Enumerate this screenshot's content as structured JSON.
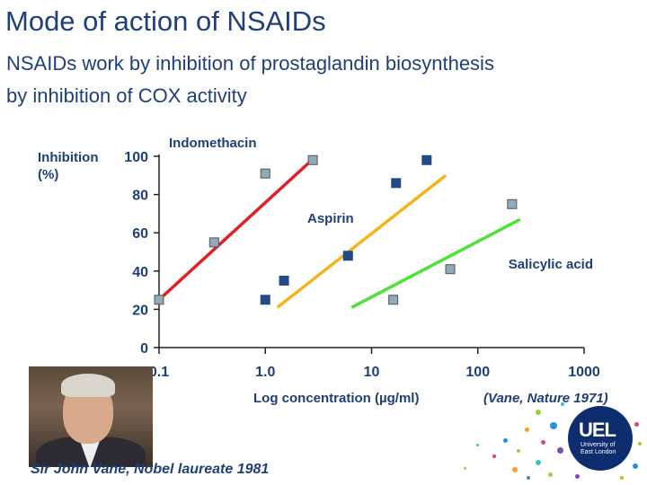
{
  "title": "Mode of action of NSAIDs",
  "subtitle_lines": [
    "NSAIDs work by inhibition of prostaglandin biosynthesis",
    "by inhibition of COX activity"
  ],
  "caption": "Sir John Vane, Nobel laureate 1981",
  "logo": {
    "mark": "UEL",
    "name": "University of East London"
  },
  "colors": {
    "text": "#1f3f7a",
    "indomethacin": "#e01f26",
    "aspirin": "#f4b41a",
    "salicylic": "#4fe03a",
    "marker_navy": "#214a86",
    "marker_grey": "#8faab8",
    "marker_outline": "#555555"
  },
  "chart_data": {
    "type": "scatter",
    "ylabel": "Inhibition\n(%)",
    "xlabel": "Log concentration (µg/ml)",
    "citation": "(Vane, Nature 1971)",
    "xscale": "log",
    "x_ticks": [
      {
        "value": 0.1,
        "label": "0.1"
      },
      {
        "value": 1,
        "label": "1.0"
      },
      {
        "value": 10,
        "label": "10"
      },
      {
        "value": 100,
        "label": "100"
      },
      {
        "value": 1000,
        "label": "1000"
      }
    ],
    "y_ticks": [
      0,
      20,
      40,
      60,
      80,
      100
    ],
    "xlim": [
      0.1,
      1000
    ],
    "ylim": [
      0,
      100
    ],
    "grid": false,
    "series": [
      {
        "name": "Indomethacin",
        "color_key": "indomethacin",
        "line": [
          [
            0.1,
            25
          ],
          [
            3,
            100
          ]
        ],
        "points": [
          {
            "x": 0.1,
            "y": 25,
            "marker": "grey"
          },
          {
            "x": 0.33,
            "y": 55,
            "marker": "grey"
          },
          {
            "x": 1.0,
            "y": 91,
            "marker": "grey"
          },
          {
            "x": 2.8,
            "y": 98,
            "marker": "grey"
          }
        ]
      },
      {
        "name": "Aspirin",
        "color_key": "aspirin",
        "line": [
          [
            1.3,
            21
          ],
          [
            50,
            90
          ]
        ],
        "points": [
          {
            "x": 1.0,
            "y": 25,
            "marker": "navy"
          },
          {
            "x": 1.5,
            "y": 35,
            "marker": "navy"
          },
          {
            "x": 6.0,
            "y": 48,
            "marker": "navy"
          },
          {
            "x": 17,
            "y": 86,
            "marker": "navy"
          },
          {
            "x": 33,
            "y": 98,
            "marker": "navy"
          }
        ]
      },
      {
        "name": "Salicylic acid",
        "color_key": "salicylic",
        "line": [
          [
            6.5,
            21
          ],
          [
            250,
            67
          ]
        ],
        "points": [
          {
            "x": 16,
            "y": 25,
            "marker": "grey"
          },
          {
            "x": 55,
            "y": 41,
            "marker": "grey"
          },
          {
            "x": 210,
            "y": 75,
            "marker": "grey"
          }
        ]
      }
    ]
  }
}
